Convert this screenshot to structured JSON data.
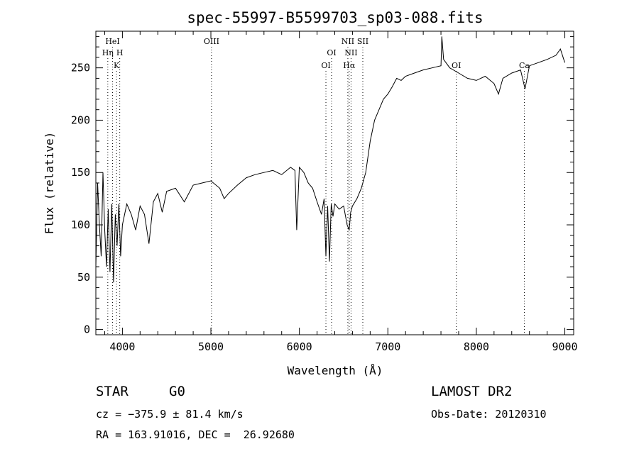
{
  "chart_data": {
    "type": "line",
    "title": "spec-55997-B5599703_sp03-088.fits",
    "xlabel": "Wavelength (Å)",
    "ylabel": "Flux (relative)",
    "xlim": [
      3700,
      9100
    ],
    "ylim": [
      -5,
      285
    ],
    "x_ticks": [
      4000,
      5000,
      6000,
      7000,
      8000,
      9000
    ],
    "y_ticks": [
      0,
      50,
      100,
      150,
      200,
      250
    ],
    "grid": false,
    "series": [
      {
        "x": [
          3700,
          3720,
          3740,
          3760,
          3780,
          3800,
          3820,
          3840,
          3860,
          3880,
          3900,
          3920,
          3940,
          3960,
          3980,
          4000,
          4050,
          4100,
          4150,
          4200,
          4250,
          4300,
          4350,
          4400,
          4450,
          4500,
          4600,
          4700,
          4800,
          4900,
          5000,
          5100,
          5150,
          5200,
          5300,
          5400,
          5500,
          5600,
          5700,
          5800,
          5900,
          5950,
          5970,
          6000,
          6050,
          6100,
          6150,
          6200,
          6250,
          6280,
          6300,
          6320,
          6340,
          6360,
          6380,
          6400,
          6450,
          6500,
          6540,
          6563,
          6580,
          6600,
          6650,
          6700,
          6750,
          6800,
          6850,
          6900,
          6950,
          7000,
          7050,
          7100,
          7150,
          7200,
          7300,
          7400,
          7500,
          7600,
          7610,
          7630,
          7700,
          7800,
          7900,
          8000,
          8100,
          8200,
          8250,
          8300,
          8400,
          8500,
          8550,
          8600,
          8700,
          8800,
          8900,
          8950,
          9000
        ],
        "y": [
          60,
          140,
          100,
          70,
          150,
          95,
          60,
          115,
          55,
          120,
          45,
          110,
          80,
          120,
          70,
          100,
          120,
          110,
          95,
          118,
          110,
          82,
          122,
          130,
          112,
          132,
          135,
          122,
          138,
          140,
          142,
          135,
          125,
          130,
          138,
          145,
          148,
          150,
          152,
          148,
          155,
          152,
          95,
          155,
          150,
          140,
          135,
          122,
          110,
          125,
          70,
          118,
          65,
          120,
          108,
          120,
          115,
          118,
          100,
          95,
          112,
          118,
          125,
          135,
          150,
          180,
          200,
          210,
          220,
          225,
          232,
          240,
          238,
          242,
          245,
          248,
          250,
          252,
          280,
          258,
          250,
          245,
          240,
          238,
          242,
          235,
          225,
          240,
          245,
          248,
          230,
          252,
          255,
          258,
          262,
          268,
          255
        ]
      }
    ],
    "lines": [
      {
        "label": "HeI",
        "x": 3889
      },
      {
        "label": "Hη",
        "x": 3835
      },
      {
        "label": "H",
        "x": 3970
      },
      {
        "label": "K",
        "x": 3934
      },
      {
        "label": "OIII",
        "x": 5007
      },
      {
        "label": "OI",
        "x": 6364
      },
      {
        "label": "OI",
        "x": 6300
      },
      {
        "label": "NII",
        "x": 6548
      },
      {
        "label": "SII",
        "x": 6717
      },
      {
        "label": "NII",
        "x": 6584
      },
      {
        "label": "Hα",
        "x": 6563
      },
      {
        "label": "OI",
        "x": 7774
      },
      {
        "label": "Ca",
        "x": 8542
      }
    ]
  },
  "info": {
    "object_class": "STAR",
    "subclass": "G0",
    "survey": "LAMOST DR2",
    "cz": "cz = −375.9 ± 81.4 km/s",
    "obs_date": "Obs-Date: 20120310",
    "coords": "RA = 163.91016, DEC =  26.92680"
  }
}
